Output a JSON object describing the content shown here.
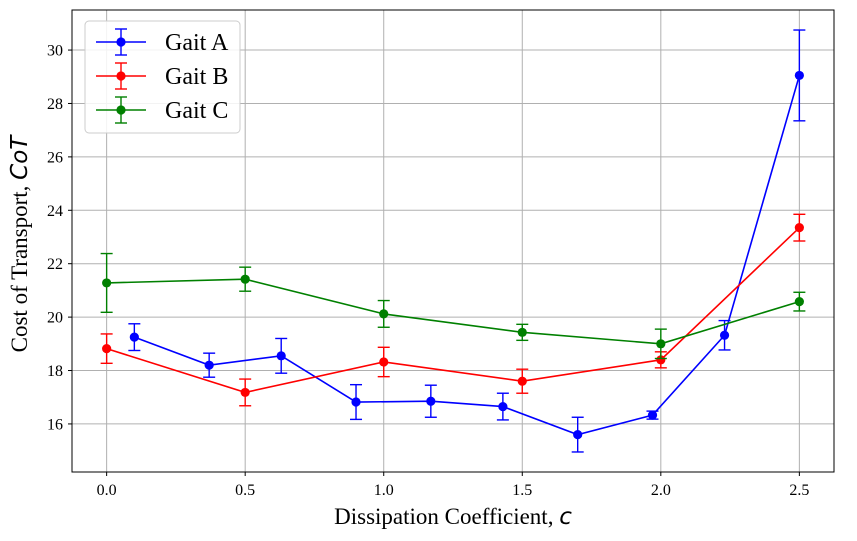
{
  "chart_data": {
    "type": "line",
    "title": "",
    "xlabel": "Dissipation Coefficient, ",
    "xlabel_var": "c",
    "ylabel": "Cost of Transport, ",
    "ylabel_var": "CoT",
    "xlim": [
      -0.125,
      2.625
    ],
    "ylim": [
      14.2,
      31.5
    ],
    "xticks": [
      0.0,
      0.5,
      1.0,
      1.5,
      2.0,
      2.5
    ],
    "xtick_labels": [
      "0.0",
      "0.5",
      "1.0",
      "1.5",
      "2.0",
      "2.5"
    ],
    "yticks": [
      16,
      18,
      20,
      22,
      24,
      26,
      28,
      30
    ],
    "ytick_labels": [
      "16",
      "18",
      "20",
      "22",
      "24",
      "26",
      "28",
      "30"
    ],
    "grid": true,
    "legend_position": "top-left",
    "series": [
      {
        "name": "Gait A",
        "color": "#0000ff",
        "x": [
          0.1,
          0.37,
          0.63,
          0.9,
          1.17,
          1.43,
          1.7,
          1.97,
          2.23,
          2.5
        ],
        "y": [
          19.25,
          18.2,
          18.55,
          16.82,
          16.85,
          16.65,
          15.6,
          16.33,
          19.32,
          29.05
        ],
        "err": [
          0.5,
          0.45,
          0.65,
          0.65,
          0.6,
          0.5,
          0.65,
          0.15,
          0.55,
          1.7
        ]
      },
      {
        "name": "Gait B",
        "color": "#ff0000",
        "x": [
          0.0,
          0.5,
          1.0,
          1.5,
          2.0,
          2.5
        ],
        "y": [
          18.82,
          17.18,
          18.32,
          17.6,
          18.4,
          23.35
        ],
        "err": [
          0.55,
          0.5,
          0.55,
          0.45,
          0.3,
          0.5
        ]
      },
      {
        "name": "Gait C",
        "color": "#008000",
        "x": [
          0.0,
          0.5,
          1.0,
          1.5,
          2.0,
          2.5
        ],
        "y": [
          21.28,
          21.42,
          20.12,
          19.43,
          19.0,
          20.58
        ],
        "err": [
          1.1,
          0.45,
          0.5,
          0.3,
          0.55,
          0.35
        ]
      }
    ]
  }
}
